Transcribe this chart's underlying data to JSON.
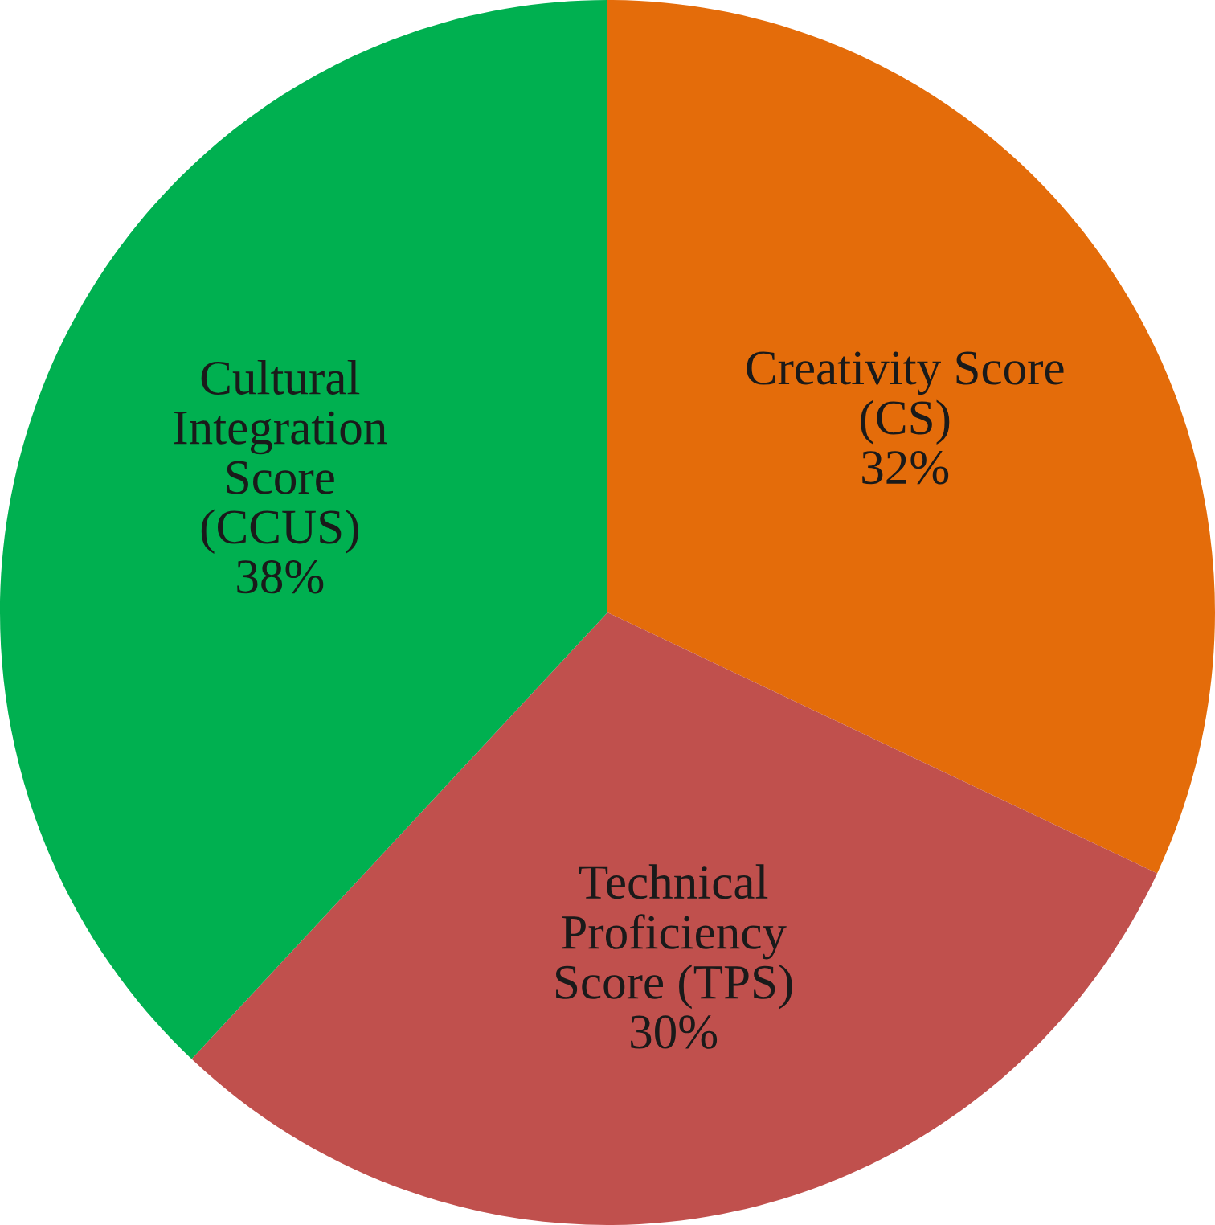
{
  "chart_data": {
    "type": "pie",
    "categories": [
      "Creativity Score\n(CS)",
      "Technical\nProficiency\nScore (TPS)",
      "Cultural\nIntegration\nScore\n(CCUS)"
    ],
    "values": [
      32,
      30,
      38
    ],
    "value_labels": [
      "32%",
      "30%",
      "38%"
    ],
    "colors": [
      "#e46c0a",
      "#c0504d",
      "#00b050"
    ],
    "legend": false
  }
}
